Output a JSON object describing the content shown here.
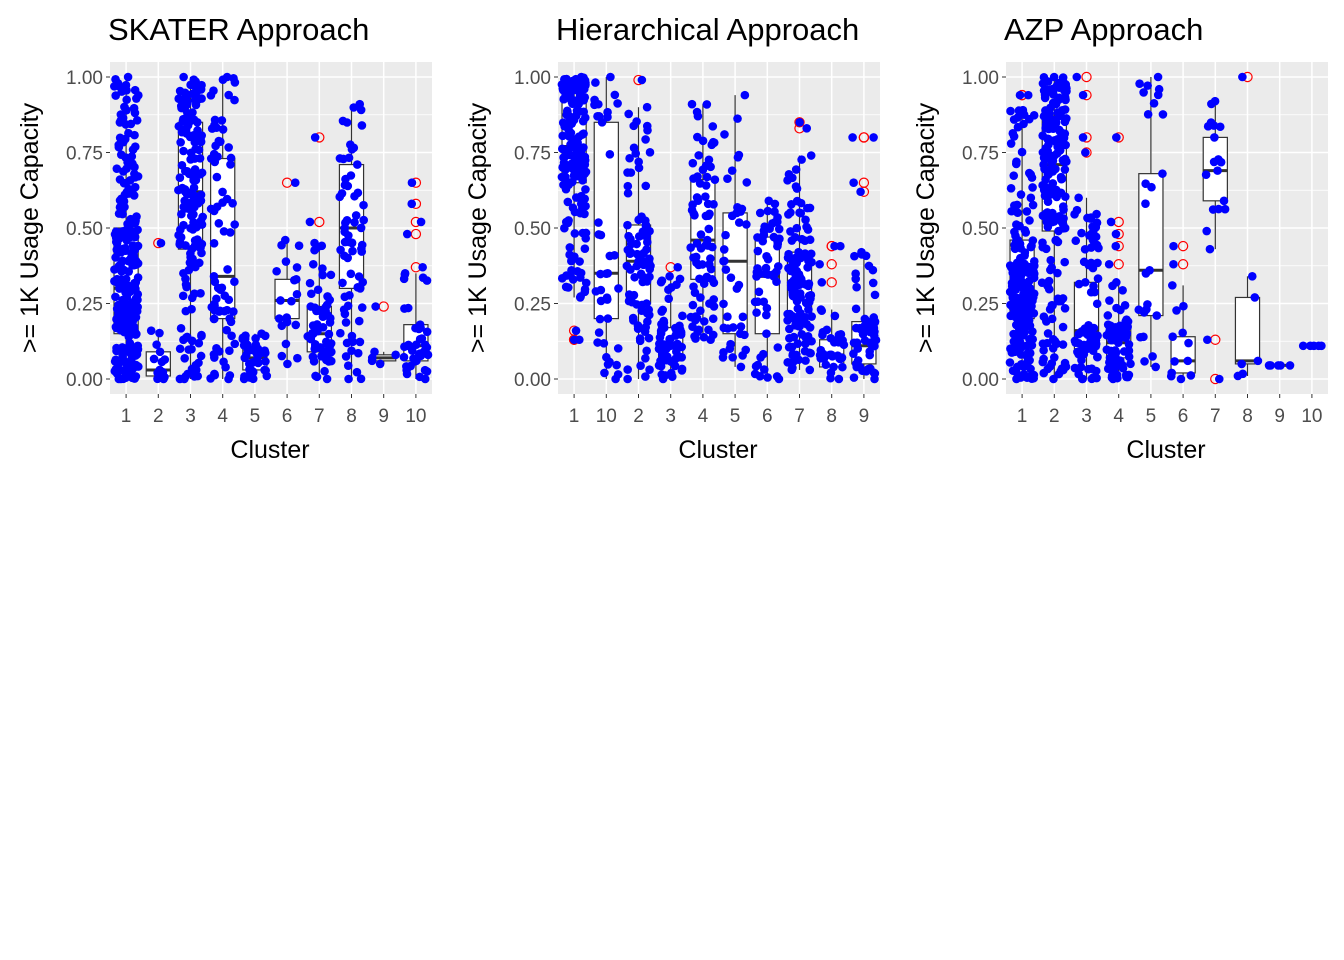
{
  "chart_data": [
    {
      "type": "boxplot",
      "title": "SKATER Approach",
      "xlabel": "Cluster",
      "ylabel": ">= 1K Usage Capacity",
      "ylim": [
        0,
        1
      ],
      "yticks": [
        "0.00",
        "0.25",
        "0.50",
        "0.75",
        "1.00"
      ],
      "categories": [
        "1",
        "2",
        "3",
        "4",
        "5",
        "6",
        "7",
        "8",
        "9",
        "10"
      ],
      "boxes": [
        {
          "q1": 0.15,
          "median": 0.3,
          "q3": 0.5,
          "lower": 0.0,
          "upper": 1.0,
          "n": 260,
          "jmin": 0.0,
          "jmax": 1.0,
          "outliers": []
        },
        {
          "q1": 0.01,
          "median": 0.03,
          "q3": 0.09,
          "lower": 0.0,
          "upper": 0.16,
          "n": 14,
          "jmin": 0.0,
          "jmax": 0.16,
          "outliers": [
            0.45
          ]
        },
        {
          "q1": 0.43,
          "median": 0.62,
          "q3": 0.85,
          "lower": 0.0,
          "upper": 1.0,
          "n": 170,
          "jmin": 0.0,
          "jmax": 1.0,
          "outliers": []
        },
        {
          "q1": 0.2,
          "median": 0.34,
          "q3": 0.73,
          "lower": 0.0,
          "upper": 1.0,
          "n": 75,
          "jmin": 0.0,
          "jmax": 1.0,
          "outliers": []
        },
        {
          "q1": 0.03,
          "median": 0.07,
          "q3": 0.1,
          "lower": 0.0,
          "upper": 0.15,
          "n": 40,
          "jmin": 0.0,
          "jmax": 0.15,
          "outliers": []
        },
        {
          "q1": 0.2,
          "median": 0.26,
          "q3": 0.33,
          "lower": 0.05,
          "upper": 0.46,
          "n": 20,
          "jmin": 0.05,
          "jmax": 0.46,
          "outliers": [
            0.65
          ]
        },
        {
          "q1": 0.09,
          "median": 0.15,
          "q3": 0.24,
          "lower": 0.0,
          "upper": 0.45,
          "n": 60,
          "jmin": 0.0,
          "jmax": 0.45,
          "outliers": [
            0.52,
            0.8
          ]
        },
        {
          "q1": 0.3,
          "median": 0.5,
          "q3": 0.71,
          "lower": 0.0,
          "upper": 0.91,
          "n": 70,
          "jmin": 0.0,
          "jmax": 0.91,
          "outliers": []
        },
        {
          "q1": 0.06,
          "median": 0.07,
          "q3": 0.08,
          "lower": 0.05,
          "upper": 0.09,
          "n": 5,
          "jmin": 0.05,
          "jmax": 0.09,
          "outliers": [
            0.24
          ]
        },
        {
          "q1": 0.06,
          "median": 0.11,
          "q3": 0.18,
          "lower": 0.0,
          "upper": 0.35,
          "n": 40,
          "jmin": 0.0,
          "jmax": 0.35,
          "outliers": [
            0.37,
            0.48,
            0.52,
            0.58,
            0.65
          ]
        }
      ]
    },
    {
      "type": "boxplot",
      "title": "Hierarchical Approach",
      "xlabel": "Cluster",
      "ylabel": ">= 1K Usage Capacity",
      "ylim": [
        0,
        1
      ],
      "yticks": [
        "0.00",
        "0.25",
        "0.50",
        "0.75",
        "1.00"
      ],
      "categories": [
        "1",
        "10",
        "2",
        "3",
        "4",
        "5",
        "6",
        "7",
        "8",
        "9"
      ],
      "boxes": [
        {
          "q1": 0.65,
          "median": 0.77,
          "q3": 0.92,
          "lower": 0.27,
          "upper": 1.0,
          "n": 170,
          "jmin": 0.27,
          "jmax": 1.0,
          "outliers": [
            0.13,
            0.13,
            0.16
          ]
        },
        {
          "q1": 0.2,
          "median": 0.35,
          "q3": 0.85,
          "lower": 0.0,
          "upper": 1.0,
          "n": 40,
          "jmin": 0.0,
          "jmax": 1.0,
          "outliers": []
        },
        {
          "q1": 0.25,
          "median": 0.39,
          "q3": 0.51,
          "lower": 0.0,
          "upper": 0.9,
          "n": 90,
          "jmin": 0.0,
          "jmax": 0.9,
          "outliers": [
            0.99
          ]
        },
        {
          "q1": 0.06,
          "median": 0.11,
          "q3": 0.17,
          "lower": 0.0,
          "upper": 0.34,
          "n": 70,
          "jmin": 0.0,
          "jmax": 0.34,
          "outliers": [
            0.37
          ]
        },
        {
          "q1": 0.33,
          "median": 0.46,
          "q3": 0.66,
          "lower": 0.13,
          "upper": 0.91,
          "n": 80,
          "jmin": 0.13,
          "jmax": 0.91,
          "outliers": []
        },
        {
          "q1": 0.15,
          "median": 0.39,
          "q3": 0.55,
          "lower": 0.04,
          "upper": 0.94,
          "n": 40,
          "jmin": 0.04,
          "jmax": 0.94,
          "outliers": []
        },
        {
          "q1": 0.15,
          "median": 0.34,
          "q3": 0.47,
          "lower": 0.0,
          "upper": 0.59,
          "n": 60,
          "jmin": 0.0,
          "jmax": 0.59,
          "outliers": []
        },
        {
          "q1": 0.2,
          "median": 0.31,
          "q3": 0.42,
          "lower": 0.03,
          "upper": 0.74,
          "n": 130,
          "jmin": 0.03,
          "jmax": 0.74,
          "outliers": [
            0.83,
            0.85
          ]
        },
        {
          "q1": 0.04,
          "median": 0.08,
          "q3": 0.13,
          "lower": 0.0,
          "upper": 0.23,
          "n": 35,
          "jmin": 0.0,
          "jmax": 0.23,
          "outliers": [
            0.32,
            0.38,
            0.44,
            0.44
          ]
        },
        {
          "q1": 0.05,
          "median": 0.11,
          "q3": 0.19,
          "lower": 0.0,
          "upper": 0.42,
          "n": 60,
          "jmin": 0.0,
          "jmax": 0.42,
          "outliers": [
            0.62,
            0.65,
            0.8,
            0.8
          ]
        }
      ]
    },
    {
      "type": "boxplot",
      "title": "AZP Approach",
      "xlabel": "Cluster",
      "ylabel": ">= 1K Usage Capacity",
      "ylim": [
        0,
        1
      ],
      "yticks": [
        "0.00",
        "0.25",
        "0.50",
        "0.75",
        "1.00"
      ],
      "categories": [
        "1",
        "2",
        "3",
        "4",
        "5",
        "6",
        "7",
        "8",
        "9",
        "10"
      ],
      "boxes": [
        {
          "q1": 0.2,
          "median": 0.3,
          "q3": 0.46,
          "lower": 0.0,
          "upper": 0.89,
          "n": 220,
          "jmin": 0.0,
          "jmax": 0.89,
          "outliers": [
            0.94,
            0.94
          ]
        },
        {
          "q1": 0.49,
          "median": 0.71,
          "q3": 0.87,
          "lower": 0.0,
          "upper": 1.0,
          "n": 200,
          "jmin": 0.0,
          "jmax": 1.0,
          "outliers": []
        },
        {
          "q1": 0.1,
          "median": 0.16,
          "q3": 0.32,
          "lower": 0.0,
          "upper": 0.6,
          "n": 80,
          "jmin": 0.0,
          "jmax": 0.6,
          "outliers": [
            0.75,
            0.8,
            0.94,
            1.0
          ]
        },
        {
          "q1": 0.07,
          "median": 0.12,
          "q3": 0.18,
          "lower": 0.0,
          "upper": 0.32,
          "n": 70,
          "jmin": 0.0,
          "jmax": 0.32,
          "outliers": [
            0.38,
            0.44,
            0.48,
            0.52,
            0.8
          ]
        },
        {
          "q1": 0.21,
          "median": 0.36,
          "q3": 0.68,
          "lower": 0.04,
          "upper": 1.0,
          "n": 25,
          "jmin": 0.04,
          "jmax": 1.0,
          "outliers": []
        },
        {
          "q1": 0.02,
          "median": 0.06,
          "q3": 0.14,
          "lower": 0.0,
          "upper": 0.31,
          "n": 12,
          "jmin": 0.0,
          "jmax": 0.31,
          "outliers": [
            0.38,
            0.44
          ]
        },
        {
          "q1": 0.59,
          "median": 0.69,
          "q3": 0.8,
          "lower": 0.43,
          "upper": 0.92,
          "n": 18,
          "jmin": 0.43,
          "jmax": 0.92,
          "outliers": [
            0.0,
            0.13
          ]
        },
        {
          "q1": 0.05,
          "median": 0.06,
          "q3": 0.27,
          "lower": 0.01,
          "upper": 0.34,
          "n": 6,
          "jmin": 0.01,
          "jmax": 0.34,
          "outliers": [
            1.0
          ]
        },
        {
          "q1": 0.045,
          "median": 0.045,
          "q3": 0.045,
          "lower": 0.045,
          "upper": 0.045,
          "n": 2,
          "jmin": 0.045,
          "jmax": 0.045,
          "outliers": []
        },
        {
          "q1": 0.11,
          "median": 0.11,
          "q3": 0.11,
          "lower": 0.11,
          "upper": 0.11,
          "n": 1,
          "jmin": 0.11,
          "jmax": 0.11,
          "outliers": []
        }
      ]
    }
  ],
  "colors": {
    "panel_bg": "#ebebeb",
    "grid": "#ffffff",
    "point": "#0000ff",
    "outlier_ring": "#ff0000",
    "box_line": "#333333",
    "tick_text": "#4d4d4d"
  }
}
